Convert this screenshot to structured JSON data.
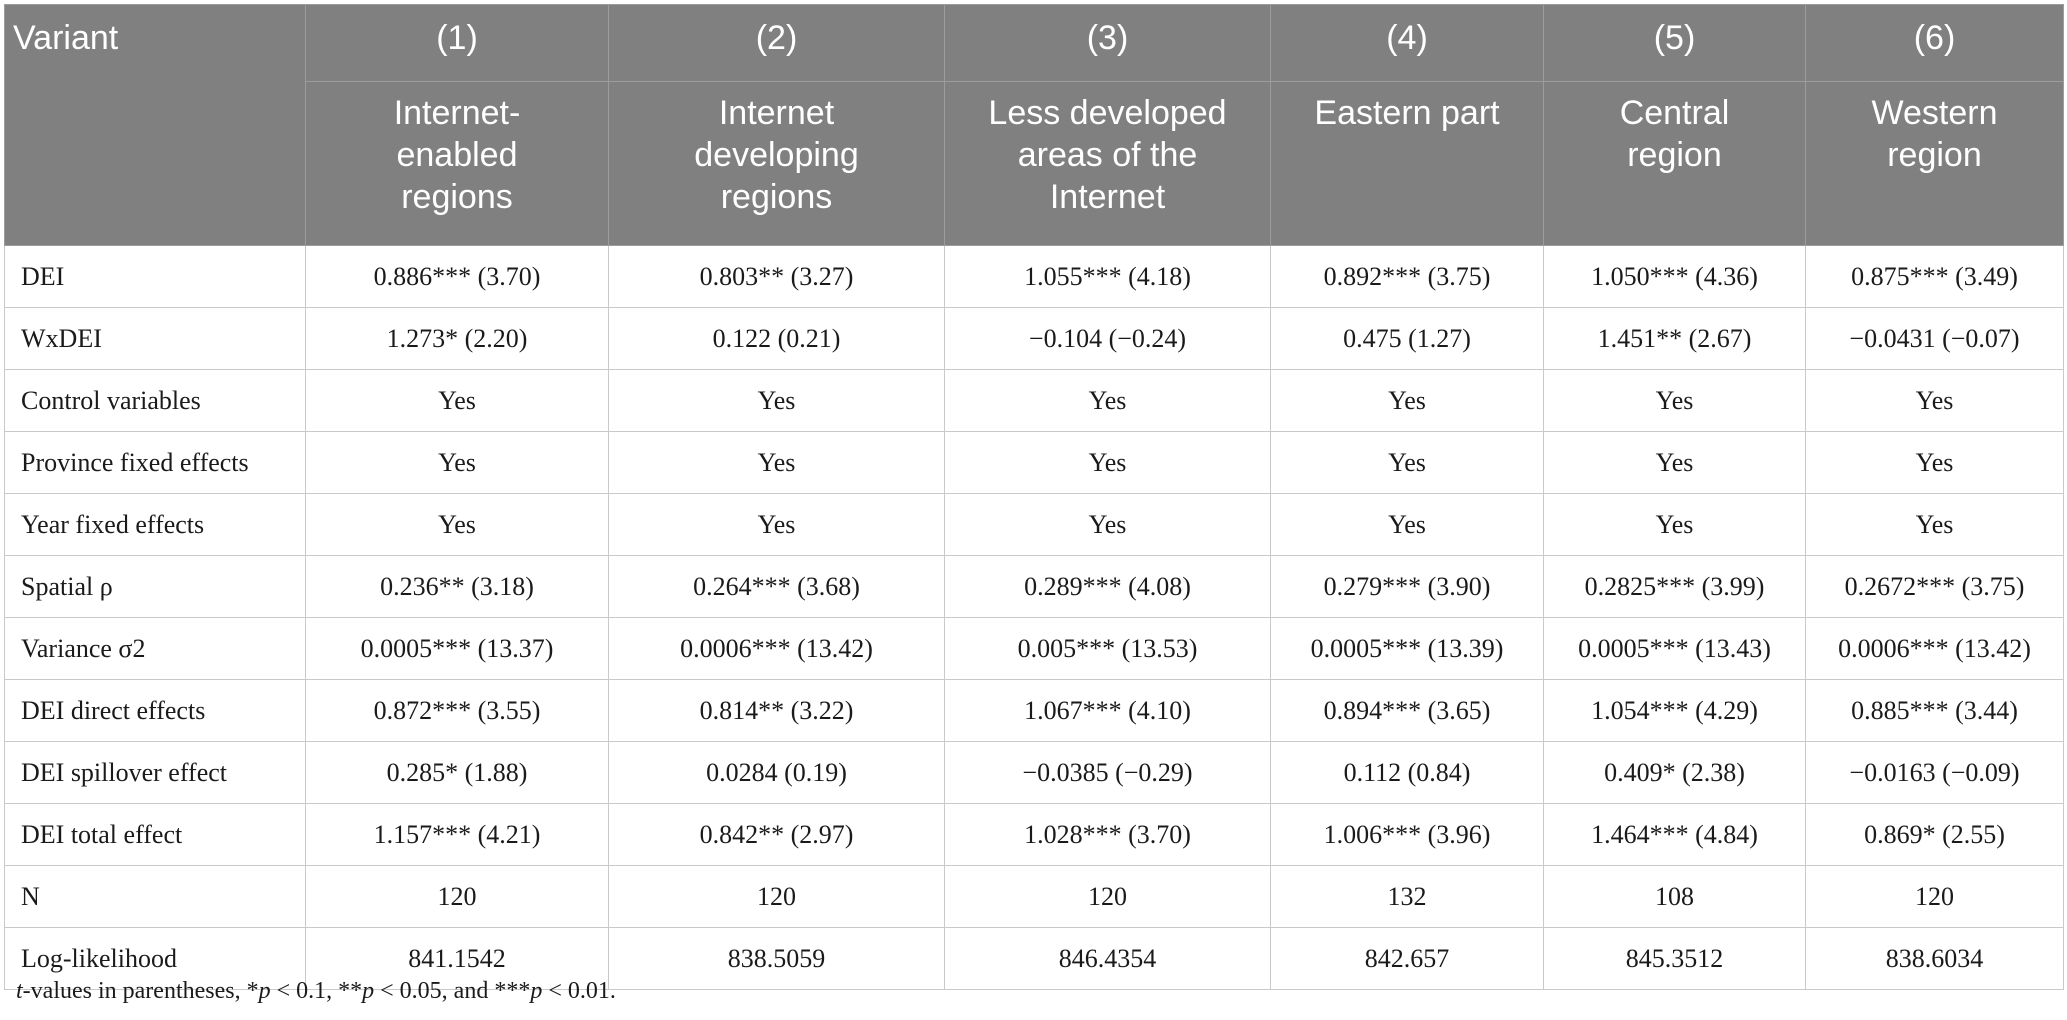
{
  "header": {
    "variant_label": "Variant",
    "columns": [
      {
        "number": "(1)",
        "name": "Internet-enabled regions"
      },
      {
        "number": "(2)",
        "name": "Internet developing regions"
      },
      {
        "number": "(3)",
        "name": "Less developed areas of the Internet"
      },
      {
        "number": "(4)",
        "name": "Eastern part"
      },
      {
        "number": "(5)",
        "name": "Central region"
      },
      {
        "number": "(6)",
        "name": "Western region"
      }
    ]
  },
  "rows": [
    {
      "label": "DEI",
      "values": [
        "0.886*** (3.70)",
        "0.803** (3.27)",
        "1.055*** (4.18)",
        "0.892*** (3.75)",
        "1.050*** (4.36)",
        "0.875*** (3.49)"
      ]
    },
    {
      "label": "WxDEI",
      "values": [
        "1.273* (2.20)",
        "0.122 (0.21)",
        "−0.104 (−0.24)",
        "0.475 (1.27)",
        "1.451** (2.67)",
        "−0.0431 (−0.07)"
      ]
    },
    {
      "label": "Control variables",
      "values": [
        "Yes",
        "Yes",
        "Yes",
        "Yes",
        "Yes",
        "Yes"
      ]
    },
    {
      "label": "Province fixed effects",
      "values": [
        "Yes",
        "Yes",
        "Yes",
        "Yes",
        "Yes",
        "Yes"
      ]
    },
    {
      "label": "Year fixed effects",
      "values": [
        "Yes",
        "Yes",
        "Yes",
        "Yes",
        "Yes",
        "Yes"
      ]
    },
    {
      "label": "Spatial ρ",
      "values": [
        "0.236** (3.18)",
        "0.264*** (3.68)",
        "0.289*** (4.08)",
        "0.279*** (3.90)",
        "0.2825*** (3.99)",
        "0.2672*** (3.75)"
      ]
    },
    {
      "label": "Variance σ2",
      "values": [
        "0.0005*** (13.37)",
        "0.0006*** (13.42)",
        "0.005*** (13.53)",
        "0.0005*** (13.39)",
        "0.0005*** (13.43)",
        "0.0006*** (13.42)"
      ]
    },
    {
      "label": "DEI direct effects",
      "values": [
        "0.872*** (3.55)",
        "0.814** (3.22)",
        "1.067*** (4.10)",
        "0.894*** (3.65)",
        "1.054*** (4.29)",
        "0.885*** (3.44)"
      ]
    },
    {
      "label": "DEI spillover effect",
      "values": [
        "0.285* (1.88)",
        "0.0284 (0.19)",
        "−0.0385 (−0.29)",
        "0.112 (0.84)",
        "0.409* (2.38)",
        "−0.0163 (−0.09)"
      ]
    },
    {
      "label": "DEI total effect",
      "values": [
        "1.157*** (4.21)",
        "0.842** (2.97)",
        "1.028*** (3.70)",
        "1.006*** (3.96)",
        "1.464*** (4.84)",
        "0.869* (2.55)"
      ]
    },
    {
      "label": "N",
      "values": [
        "120",
        "120",
        "120",
        "132",
        "108",
        "120"
      ]
    },
    {
      "label": "Log-likelihood",
      "values": [
        "841.1542",
        "838.5059",
        "846.4354",
        "842.657",
        "845.3512",
        "838.6034"
      ]
    }
  ],
  "footnote": {
    "t_italic": "t",
    "text_1": "-values in parentheses, *",
    "p1": "p",
    "text_2": " < 0.1, **",
    "p2": "p",
    "text_3": " < 0.05, and ***",
    "p3": "p",
    "text_4": " < 0.01."
  }
}
